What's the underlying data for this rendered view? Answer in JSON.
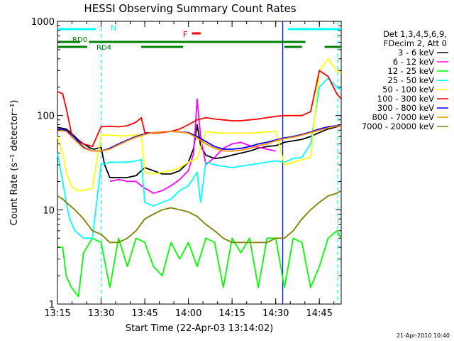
{
  "chart_data": {
    "type": "line",
    "title": "HESSI Observing Summary Count Rates",
    "xlabel": "Start Time (22-Apr-03 13:14:02)",
    "ylabel": "Count Rate (s⁻¹ detector⁻¹)",
    "x_unit": "minutes",
    "xlim": [
      13.25,
      14.875
    ],
    "xticks": [
      {
        "v": 13.25,
        "label": "13:15"
      },
      {
        "v": 13.5,
        "label": "13:30"
      },
      {
        "v": 13.75,
        "label": "13:45"
      },
      {
        "v": 14.0,
        "label": "14:00"
      },
      {
        "v": 14.25,
        "label": "14:15"
      },
      {
        "v": 14.5,
        "label": "14:30"
      },
      {
        "v": 14.75,
        "label": "14:45"
      }
    ],
    "yscale": "log",
    "ylim": [
      1,
      1000
    ],
    "yticks": [
      {
        "v": 1,
        "label": "1"
      },
      {
        "v": 10,
        "label": "10"
      },
      {
        "v": 100,
        "label": "100"
      },
      {
        "v": 1000,
        "label": "1000"
      }
    ],
    "legend": {
      "header": [
        "Det 1,3,4,5,6,9,",
        "FDecim 2, Att 0"
      ],
      "placement": "right"
    },
    "series": [
      {
        "name": "3 - 6 keV",
        "color": "#000000",
        "x": [
          13.25,
          13.3,
          13.33,
          13.37,
          13.4,
          13.44,
          13.46,
          13.48,
          13.5,
          13.52,
          13.55,
          13.6,
          13.65,
          13.7,
          13.73,
          13.75,
          13.8,
          13.85,
          13.9,
          13.95,
          14.0,
          14.03,
          14.05,
          14.07,
          14.1,
          14.15,
          14.2,
          14.25,
          14.3,
          14.35,
          14.4,
          14.45,
          14.5,
          14.53,
          14.55,
          14.6,
          14.65,
          14.7,
          14.75,
          14.8,
          14.85,
          14.875
        ],
        "y": [
          75,
          72,
          65,
          55,
          50,
          45,
          44,
          45,
          46,
          30,
          22,
          22,
          22,
          23,
          26,
          28,
          26,
          24,
          24,
          26,
          32,
          45,
          80,
          48,
          38,
          35,
          36,
          38,
          40,
          42,
          45,
          47,
          48,
          50,
          52,
          54,
          56,
          60,
          66,
          72,
          76,
          78
        ]
      },
      {
        "name": "6 - 12 keV",
        "color": "#ff00ff",
        "x": [
          13.55,
          13.6,
          13.65,
          13.7,
          13.73,
          13.75,
          13.8,
          13.85,
          13.9,
          13.95,
          14.0,
          14.03,
          14.05,
          14.07,
          14.1,
          14.15,
          14.2,
          14.25,
          14.3,
          14.35,
          14.4,
          14.45,
          14.5
        ],
        "y": [
          20,
          21,
          20,
          20,
          18,
          17,
          15,
          16,
          18,
          21,
          26,
          40,
          150,
          60,
          30,
          36,
          45,
          50,
          52,
          48,
          46,
          44,
          42
        ]
      },
      {
        "name": "12 - 25 keV",
        "color": "#00ff00",
        "x": [
          13.25,
          13.28,
          13.3,
          13.33,
          13.37,
          13.4,
          13.45,
          13.5,
          13.55,
          13.6,
          13.65,
          13.7,
          13.75,
          13.8,
          13.85,
          13.9,
          13.95,
          14.0,
          14.05,
          14.1,
          14.15,
          14.2,
          14.25,
          14.3,
          14.35,
          14.4,
          14.45,
          14.5,
          14.55,
          14.6,
          14.65,
          14.7,
          14.75,
          14.8,
          14.85,
          14.875
        ],
        "y": [
          4,
          4,
          2,
          1.5,
          1.2,
          3.5,
          5,
          4.5,
          1.5,
          5,
          2.5,
          5,
          4.5,
          2.5,
          2,
          4.5,
          3,
          4.5,
          2.5,
          5,
          4.5,
          1.5,
          5,
          3.5,
          5,
          1.5,
          5,
          5,
          1.5,
          5,
          4.5,
          1.5,
          2.5,
          5,
          6,
          5
        ]
      },
      {
        "name": "25 - 50 keV",
        "color": "#00ffff",
        "x": [
          13.25,
          13.28,
          13.3,
          13.32,
          13.35,
          13.4,
          13.45,
          13.5,
          13.55,
          13.6,
          13.65,
          13.7,
          13.73,
          13.75,
          13.8,
          13.85,
          13.9,
          13.95,
          14.0,
          14.03,
          14.05,
          14.07,
          14.1,
          14.15,
          14.2,
          14.25,
          14.3,
          14.35,
          14.4,
          14.45,
          14.5,
          14.55,
          14.6,
          14.65,
          14.7,
          14.75,
          14.8,
          14.85,
          14.875
        ],
        "y": [
          40,
          20,
          12,
          8,
          6,
          5,
          5,
          30,
          32,
          32,
          32,
          33,
          34,
          12,
          11,
          12,
          13,
          16,
          18,
          22,
          25,
          12,
          32,
          30,
          29,
          28,
          29,
          30,
          31,
          32,
          33,
          32,
          35,
          36,
          50,
          200,
          250,
          200,
          190
        ]
      },
      {
        "name": "50 - 100 keV",
        "color": "#ffff00",
        "x": [
          13.25,
          13.28,
          13.3,
          13.33,
          13.36,
          13.4,
          13.45,
          13.5,
          13.55,
          13.6,
          13.65,
          13.7,
          13.73,
          13.75,
          13.8,
          13.85,
          13.9,
          13.95,
          14.0,
          14.05,
          14.1,
          14.15,
          14.2,
          14.25,
          14.3,
          14.35,
          14.4,
          14.45,
          14.5,
          14.55,
          14.6,
          14.65,
          14.7,
          14.75,
          14.8,
          14.85,
          14.875
        ],
        "y": [
          60,
          40,
          25,
          18,
          16,
          16,
          17,
          62,
          62,
          61,
          61,
          62,
          63,
          25,
          24,
          25,
          26,
          28,
          32,
          35,
          68,
          66,
          65,
          65,
          65,
          65,
          66,
          67,
          68,
          30,
          32,
          34,
          36,
          300,
          400,
          300,
          280
        ]
      },
      {
        "name": "100 - 300 keV",
        "color": "#ff0000",
        "x": [
          13.25,
          13.28,
          13.3,
          13.33,
          13.36,
          13.4,
          13.45,
          13.5,
          13.55,
          13.6,
          13.65,
          13.7,
          13.73,
          13.75,
          13.8,
          13.85,
          13.9,
          13.95,
          14.0,
          14.05,
          14.1,
          14.15,
          14.2,
          14.25,
          14.3,
          14.35,
          14.4,
          14.45,
          14.5,
          14.55,
          14.6,
          14.65,
          14.7,
          14.75,
          14.8,
          14.85,
          14.875
        ],
        "y": [
          180,
          170,
          120,
          65,
          55,
          50,
          47,
          76,
          77,
          76,
          78,
          85,
          95,
          66,
          65,
          66,
          68,
          72,
          80,
          90,
          95,
          92,
          90,
          88,
          88,
          90,
          92,
          95,
          98,
          100,
          100,
          100,
          110,
          300,
          260,
          170,
          150
        ]
      },
      {
        "name": "300 - 800 keV",
        "color": "#0000ff",
        "x": [
          13.25,
          13.3,
          13.35,
          13.4,
          13.45,
          13.5,
          13.55,
          13.6,
          13.65,
          13.7,
          13.75,
          13.8,
          13.85,
          13.9,
          13.95,
          14.0,
          14.05,
          14.1,
          14.15,
          14.2,
          14.25,
          14.3,
          14.35,
          14.4,
          14.45,
          14.5,
          14.55,
          14.6,
          14.65,
          14.7,
          14.75,
          14.8,
          14.85,
          14.875
        ],
        "y": [
          72,
          70,
          58,
          46,
          42,
          42,
          45,
          50,
          55,
          60,
          64,
          66,
          67,
          68,
          67,
          66,
          60,
          53,
          47,
          44,
          44,
          45,
          47,
          50,
          52,
          55,
          58,
          60,
          63,
          67,
          72,
          76,
          78,
          80
        ]
      },
      {
        "name": "800 - 7000 keV",
        "color": "#ff8c00",
        "x": [
          13.25,
          13.3,
          13.35,
          13.4,
          13.45,
          13.5,
          13.55,
          13.6,
          13.65,
          13.7,
          13.75,
          13.8,
          13.85,
          13.9,
          13.95,
          14.0,
          14.05,
          14.1,
          14.15,
          14.2,
          14.25,
          14.3,
          14.35,
          14.4,
          14.45,
          14.5,
          14.55,
          14.6,
          14.65,
          14.7,
          14.75,
          14.8,
          14.85,
          14.875
        ],
        "y": [
          70,
          68,
          55,
          45,
          42,
          42,
          44,
          49,
          54,
          59,
          63,
          66,
          67,
          68,
          67,
          65,
          58,
          50,
          45,
          42,
          42,
          43,
          45,
          48,
          50,
          54,
          57,
          59,
          62,
          66,
          70,
          74,
          77,
          78
        ]
      },
      {
        "name": "7000 - 20000 keV",
        "color": "#808000",
        "x": [
          13.25,
          13.28,
          13.3,
          13.35,
          13.4,
          13.45,
          13.5,
          13.55,
          13.6,
          13.65,
          13.7,
          13.75,
          13.8,
          13.85,
          13.9,
          13.95,
          14.0,
          14.05,
          14.1,
          14.15,
          14.2,
          14.25,
          14.3,
          14.35,
          14.4,
          14.45,
          14.5,
          14.55,
          14.6,
          14.65,
          14.7,
          14.75,
          14.8,
          14.85,
          14.875
        ],
        "y": [
          14,
          13,
          12,
          10,
          8,
          6,
          5.5,
          4.5,
          4.5,
          5,
          6,
          8,
          9,
          10,
          10.5,
          10,
          9.5,
          8.5,
          7,
          6,
          5,
          4.5,
          4.5,
          4.5,
          4.5,
          4.5,
          5,
          5,
          6,
          8,
          10,
          12,
          14,
          15,
          16
        ]
      }
    ],
    "annotations": [
      {
        "text": "N",
        "color": "#00ffff"
      },
      {
        "text": "RD0",
        "color": "#008000"
      },
      {
        "text": "RD4",
        "color": "#008000"
      },
      {
        "text": "F",
        "color": "#ff0000"
      }
    ],
    "flag_bars": [
      {
        "label": "N",
        "color": "#00ffff",
        "row": 1,
        "spans": [
          [
            13.25,
            13.47
          ],
          [
            14.57,
            14.875
          ]
        ]
      },
      {
        "label": "F",
        "color": "#ff0000",
        "row": 2,
        "spans": [
          [
            14.02,
            14.07
          ]
        ]
      },
      {
        "label": "RD0",
        "color": "#008000",
        "row": 3,
        "spans": [
          [
            13.25,
            13.38
          ],
          [
            13.43,
            14.67
          ]
        ]
      },
      {
        "label": "RD4",
        "color": "#008000",
        "row": 4,
        "spans": [
          [
            13.25,
            13.42
          ],
          [
            13.73,
            13.97
          ],
          [
            14.55,
            14.65
          ],
          [
            14.78,
            14.875
          ]
        ]
      }
    ],
    "vlines": [
      {
        "x": 13.5,
        "color": "#00ffff",
        "style": "dashed"
      },
      {
        "x": 14.54,
        "color": "#00ffff",
        "style": "solid"
      },
      {
        "x": 14.54,
        "color": "#0000ff",
        "style": "solid"
      },
      {
        "x": 14.855,
        "color": "#00ffff",
        "style": "dashed"
      }
    ],
    "footer": "21-Apr-2010 10:40"
  }
}
